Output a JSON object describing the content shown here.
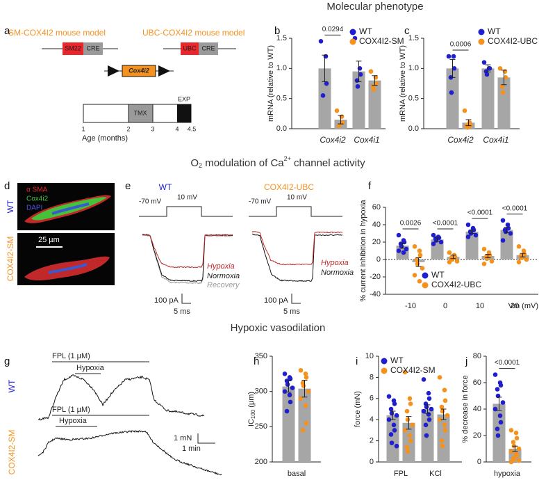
{
  "figure": {
    "sections": {
      "molecular": "Molecular phenotype",
      "channel": [
        "O",
        "2",
        " modulation of Ca",
        "2+",
        " channel activity"
      ],
      "vasodilation": "Hypoxic vasodilation"
    },
    "letters": [
      "a",
      "b",
      "c",
      "d",
      "e",
      "f",
      "g",
      "h",
      "i",
      "j"
    ],
    "a": {
      "models": [
        "SM-COX4I2 mouse model",
        "UBC-COX4I2 mouse model"
      ],
      "promoters": [
        "SM22",
        "UBC"
      ],
      "cre": "CRE",
      "gene": "Cox4i2",
      "tmx": "TMX",
      "exp": "EXP",
      "ages": [
        "1",
        "2",
        "3",
        "4",
        "4.5"
      ],
      "age_label": "Age (months)"
    },
    "d": {
      "stains": [
        "α SMA",
        "Cox4i2",
        "DAPI"
      ],
      "scale": "25 µm",
      "rows": [
        "WT",
        "COX4I2-SM"
      ]
    },
    "e": {
      "titles": [
        "WT",
        "COX4I2-UBC"
      ],
      "hold": "-70 mV",
      "step": "10 mV",
      "traces": [
        "Hypoxia",
        "Normoxia",
        "Recovery"
      ],
      "scale_y": "100 pA",
      "scale_x": "5 ms"
    },
    "g": {
      "drug": "FPL (1 µM)",
      "stim": "Hypoxia",
      "rows": [
        "WT",
        "COX4I2-SM"
      ],
      "scale_y": "1 mN",
      "scale_x": "1 min"
    }
  },
  "chart_data": [
    {
      "type": "bar",
      "ylabel": "mRNA (relative to WT)",
      "categories": [
        "Cox4i2",
        "Cox4i1"
      ],
      "bar_color": "#a6a6a6",
      "series": [
        {
          "name": "WT",
          "color": "#1f1fd0",
          "values": [
            1.0,
            0.95
          ],
          "errors": [
            0.22,
            0.17
          ],
          "points": [
            [
              1.45,
              1.2,
              0.75,
              0.55
            ],
            [
              1.5,
              1.0,
              0.9,
              0.8,
              0.7
            ]
          ]
        },
        {
          "name": "COX4I2-SM",
          "color": "#f5921e",
          "values": [
            0.15,
            0.8
          ],
          "errors": [
            0.07,
            0.08
          ],
          "points": [
            [
              0.3,
              0.2,
              0.1,
              0.05
            ],
            [
              0.95,
              0.85,
              0.75,
              0.7,
              0.65
            ]
          ]
        }
      ],
      "pvalues": [
        "0.0294",
        null
      ],
      "ylim": [
        0,
        1.5
      ],
      "yticks": [
        {
          "value": 0,
          "label": "0.0"
        },
        0.5,
        {
          "value": 1,
          "label": "1.0"
        },
        1.5
      ]
    },
    {
      "type": "bar",
      "ylabel": "mRNA (relative to WT)",
      "categories": [
        "Cox4i2",
        "Cox4i1"
      ],
      "bar_color": "#a6a6a6",
      "series": [
        {
          "name": "WT",
          "color": "#1f1fd0",
          "values": [
            1.0,
            1.0
          ],
          "errors": [
            0.15,
            0.06
          ],
          "points": [
            [
              1.2,
              1.2,
              1.0,
              0.85,
              0.6
            ],
            [
              1.1,
              1.0,
              1.0,
              0.95,
              0.9
            ]
          ]
        },
        {
          "name": "COX4I2-UBC",
          "color": "#f5921e",
          "values": [
            0.1,
            0.85
          ],
          "errors": [
            0.05,
            0.12
          ],
          "points": [
            [
              0.3,
              0.1,
              0.05,
              0.05,
              0.02
            ],
            [
              1.0,
              0.95,
              0.85,
              0.7,
              0.6
            ]
          ]
        }
      ],
      "pvalues": [
        "0.0006",
        null
      ],
      "ylim": [
        0,
        1.5
      ],
      "yticks": [
        {
          "value": 0,
          "label": "0.0"
        },
        0.5,
        {
          "value": 1,
          "label": "1.0"
        },
        1.5
      ]
    },
    {
      "type": "bar",
      "ylabel": "% current inhibition in hypoxia",
      "xlabel": "Vm (mV)",
      "categories": [
        "-10",
        "0",
        "10",
        "20"
      ],
      "bar_color": "#a6a6a6",
      "zero_line": true,
      "series": [
        {
          "name": "WT",
          "color": "#1f1fd0",
          "values": [
            16,
            23,
            32,
            34
          ],
          "errors": [
            3,
            2,
            2,
            3
          ],
          "points": [
            [
              28,
              22,
              20,
              18,
              15,
              12,
              10,
              8
            ],
            [
              28,
              26,
              25,
              24,
              22,
              20,
              18
            ],
            [
              40,
              36,
              34,
              32,
              30,
              28,
              26
            ],
            [
              45,
              40,
              36,
              34,
              32,
              30,
              22
            ]
          ]
        },
        {
          "name": "COX4I2-UBC",
          "color": "#f5921e",
          "values": [
            -3,
            3,
            4,
            5
          ],
          "errors": [
            5,
            2,
            2,
            2
          ],
          "points": [
            [
              15,
              10,
              5,
              0,
              -5,
              -10,
              -18,
              -25
            ],
            [
              8,
              5,
              3,
              2,
              0,
              -2,
              -3
            ],
            [
              12,
              8,
              5,
              3,
              1,
              -2,
              -5
            ],
            [
              15,
              10,
              6,
              4,
              2,
              0,
              -3
            ]
          ]
        }
      ],
      "pvalues": [
        "0.0026",
        "<0.0001",
        "<0.0001",
        "<0.0001"
      ],
      "ylim": [
        -40,
        60
      ],
      "yticks": [
        -40,
        -20,
        0,
        20,
        40,
        60
      ]
    },
    {
      "type": "bar",
      "ylabel": "IC",
      "ylabel_sub": "100",
      "ylabel_unit": "(µm)",
      "categories": [
        "basal"
      ],
      "bar_color": "#a6a6a6",
      "series": [
        {
          "color": "#1f1fd0",
          "values": [
            307
          ],
          "errors": [
            8
          ],
          "points": [
            [
              325,
              320,
              318,
              315,
              310,
              305,
              300,
              295,
              285,
              272
            ]
          ]
        },
        {
          "color": "#f5921e",
          "values": [
            304
          ],
          "errors": [
            12
          ],
          "points": [
            [
              330,
              325,
              320,
              312,
              308,
              300,
              290,
              280,
              255,
              245
            ]
          ]
        }
      ],
      "ylim": [
        200,
        350
      ],
      "yticks": [
        200,
        250,
        300,
        350
      ]
    },
    {
      "type": "bar",
      "ylabel": "force (mN)",
      "categories": [
        "FPL",
        "KCl"
      ],
      "bar_color": "#a6a6a6",
      "series": [
        {
          "name": "WT",
          "color": "#1f1fd0",
          "values": [
            4.4,
            5.0
          ],
          "errors": [
            0.4,
            0.4
          ],
          "points": [
            [
              6.2,
              5.8,
              5.5,
              5.0,
              4.6,
              4.4,
              4.0,
              3.5,
              3.0,
              2.6,
              1.8,
              1.5
            ],
            [
              7.8,
              6.5,
              6.0,
              5.5,
              5.2,
              5.0,
              4.8,
              4.5,
              4.0,
              3.5,
              2.5
            ]
          ]
        },
        {
          "name": "COX4I2-SM",
          "color": "#f5921e",
          "values": [
            3.7,
            4.5
          ],
          "errors": [
            0.6,
            0.5
          ],
          "points": [
            [
              8.5,
              6.0,
              5.5,
              4.8,
              4.0,
              3.5,
              3.0,
              2.5,
              2.0,
              1.4,
              1.0
            ],
            [
              8.0,
              6.8,
              5.8,
              5.2,
              4.8,
              4.4,
              4.0,
              3.5,
              3.0,
              2.0,
              1.5
            ]
          ]
        }
      ],
      "ylim": [
        0,
        10
      ],
      "yticks": [
        0,
        2,
        4,
        6,
        8,
        10
      ]
    },
    {
      "type": "bar",
      "ylabel": "% decrease in force",
      "categories": [
        "hypoxia"
      ],
      "bar_color": "#a6a6a6",
      "series": [
        {
          "color": "#1f1fd0",
          "values": [
            44
          ],
          "errors": [
            5
          ],
          "points": [
            [
              66,
              60,
              58,
              55,
              50,
              45,
              40,
              35,
              30,
              25,
              20
            ]
          ]
        },
        {
          "color": "#f5921e",
          "values": [
            10
          ],
          "errors": [
            2
          ],
          "points": [
            [
              24,
              22,
              18,
              15,
              12,
              10,
              8,
              6,
              5,
              3,
              2,
              1,
              0
            ]
          ]
        }
      ],
      "pvalues": [
        "<0.0001"
      ],
      "ylim": [
        0,
        80
      ],
      "yticks": [
        0,
        20,
        40,
        60,
        80
      ]
    }
  ]
}
